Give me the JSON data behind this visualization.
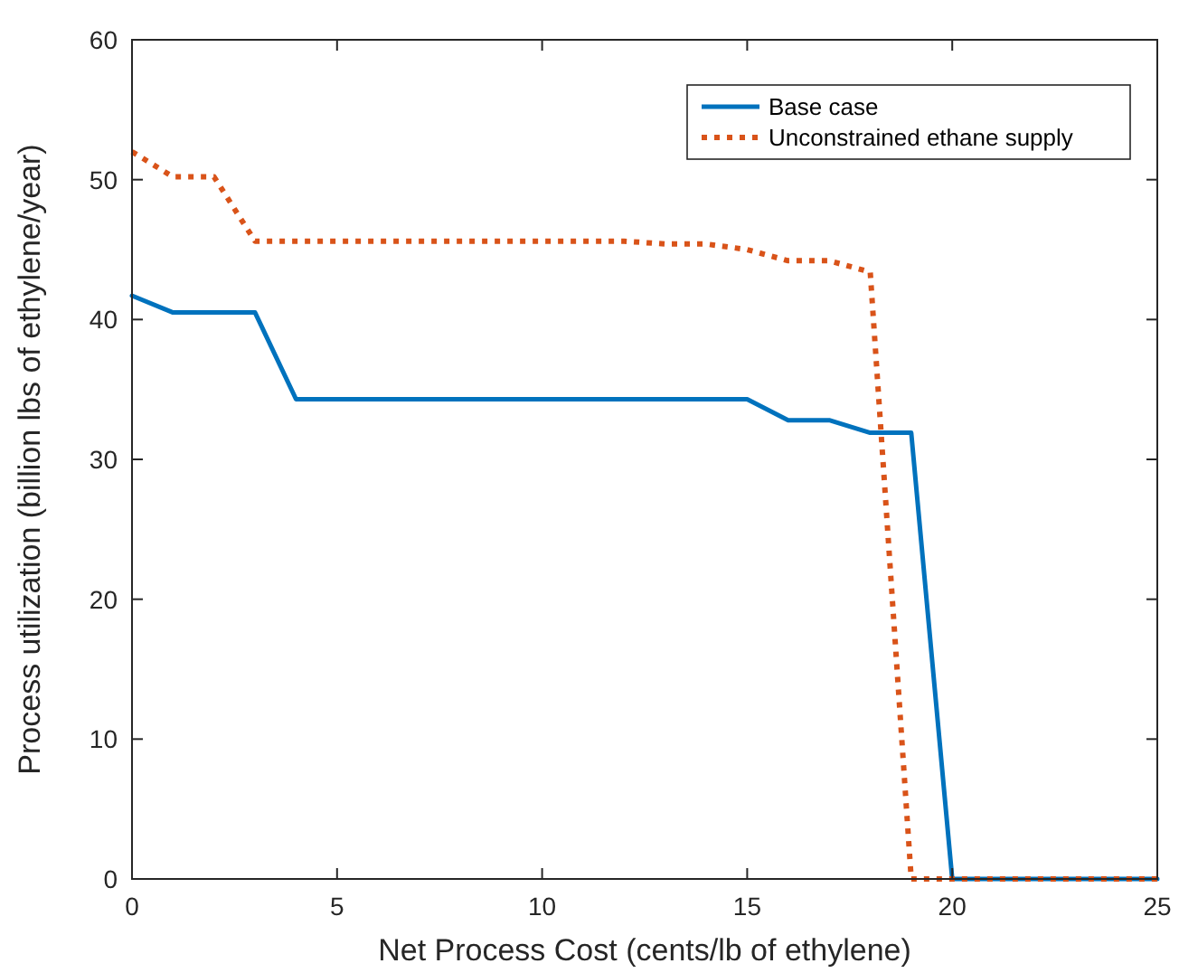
{
  "chart_data": {
    "type": "line",
    "xlabel": "Net Process Cost (cents/lb of ethylene)",
    "ylabel": "Process utilization (billion lbs of ethylene/year)",
    "x": [
      0,
      1,
      2,
      3,
      4,
      5,
      6,
      7,
      8,
      9,
      10,
      11,
      12,
      13,
      14,
      15,
      16,
      17,
      18,
      19,
      20,
      21,
      22,
      23,
      24,
      25
    ],
    "xlim": [
      0,
      25
    ],
    "xticks": [
      0,
      5,
      10,
      15,
      20,
      25
    ],
    "ylim": [
      0,
      60
    ],
    "yticks": [
      0,
      10,
      20,
      30,
      40,
      50,
      60
    ],
    "grid": false,
    "legend": "top right",
    "series": [
      {
        "name": "Base case",
        "color": "#0072bd",
        "line_style": "solid",
        "values": [
          41.7,
          40.5,
          40.5,
          40.5,
          34.3,
          34.3,
          34.3,
          34.3,
          34.3,
          34.3,
          34.3,
          34.3,
          34.3,
          34.3,
          34.3,
          34.3,
          32.8,
          32.8,
          31.9,
          31.9,
          0,
          0,
          0,
          0,
          0,
          0
        ]
      },
      {
        "name": "Unconstrained ethane supply",
        "color": "#d95319",
        "line_style": "dotted",
        "values": [
          52,
          50.2,
          50.2,
          45.6,
          45.6,
          45.6,
          45.6,
          45.6,
          45.6,
          45.6,
          45.6,
          45.6,
          45.6,
          45.4,
          45.4,
          45.0,
          44.2,
          44.2,
          43.4,
          0,
          0,
          0,
          0,
          0,
          0,
          0
        ]
      }
    ]
  }
}
